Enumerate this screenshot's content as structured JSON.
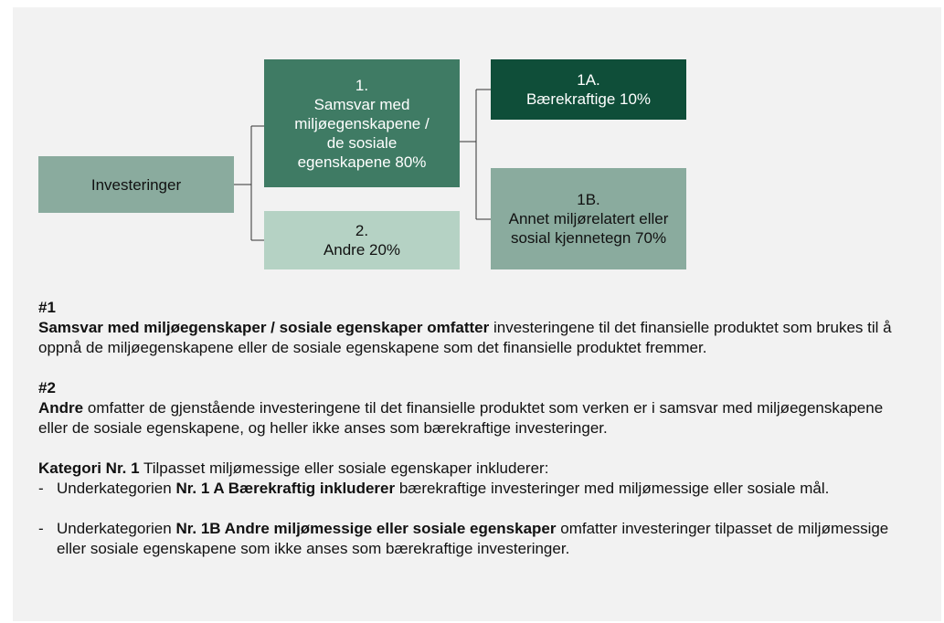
{
  "nodes": [
    {
      "lines": [
        "Investeringer"
      ]
    },
    {
      "lines": [
        "1.",
        "Samsvar med",
        "miljøegenskapene /",
        "de sosiale",
        "egenskapene 80%"
      ]
    },
    {
      "lines": [
        "2.",
        "Andre 20%"
      ]
    },
    {
      "lines": [
        "1A.",
        "Bærekraftige 10%"
      ]
    },
    {
      "lines": [
        "1B.",
        "Annet miljørelatert eller",
        "sosial kjennetegn 70%"
      ]
    }
  ],
  "sections": [
    {
      "heading": "#1",
      "bold": "Samsvar med miljøegenskaper / sosiale egenskaper omfatter",
      "text": "investeringene til det finansielle produktet som brukes til å oppnå de miljøegenskapene eller de sosiale egenskapene som det finansielle produktet fremmer."
    },
    {
      "heading": "#2",
      "bold": "Andre",
      "text": "omfatter de gjenstående investeringene til det finansielle produktet som verken er i samsvar med miljøegenskapene eller de sosiale egenskapene, og heller ikke anses som bærekraftige investeringer."
    }
  ],
  "category": {
    "bold": "Kategori Nr. 1",
    "text": "Tilpasset miljømessige eller sosiale egenskaper inkluderer:",
    "items": [
      {
        "bullet": "-",
        "pre": "Underkategorien",
        "bold": "Nr. 1 A Bærekraftig inkluderer",
        "post": "bærekraftige investeringer med miljømessige eller sosiale mål."
      },
      {
        "bullet": "-",
        "pre": "Underkategorien",
        "bold": "Nr. 1B Andre miljømessige eller sosiale egenskaper",
        "post": "omfatter investeringer tilpasset de miljømessige eller sosiale egenskapene som ikke anses som bærekraftige investeringer."
      }
    ]
  }
}
